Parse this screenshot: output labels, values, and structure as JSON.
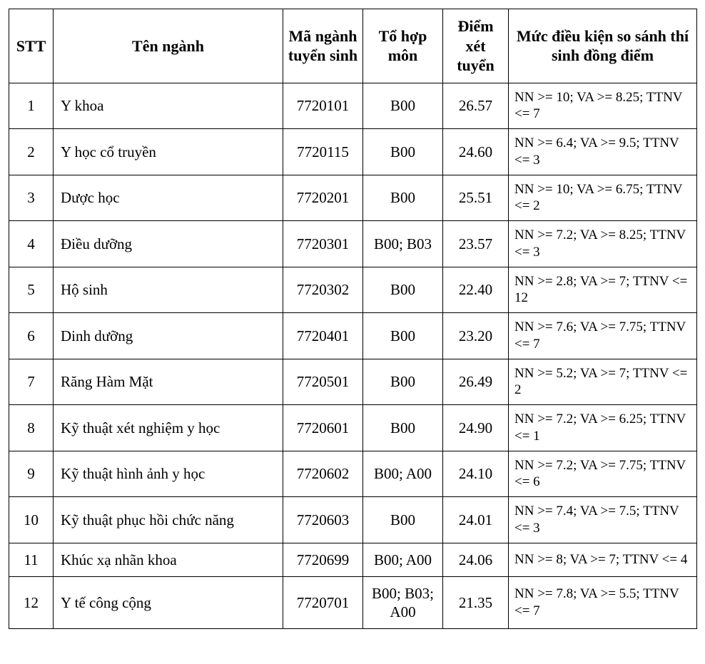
{
  "table": {
    "columns": {
      "stt": "STT",
      "name": "Tên ngành",
      "code": "Mã ngành tuyển sinh",
      "combo": "Tổ hợp môn",
      "score": "Điểm xét tuyển",
      "cond": "Mức điều kiện so sánh thí sinh đồng điểm"
    },
    "rows": [
      {
        "stt": "1",
        "name": "Y khoa",
        "code": "7720101",
        "combo": "B00",
        "score": "26.57",
        "cond": "NN >= 10; VA >= 8.25; TTNV <= 7"
      },
      {
        "stt": "2",
        "name": "Y học cổ truyền",
        "code": "7720115",
        "combo": "B00",
        "score": "24.60",
        "cond": "NN >= 6.4; VA >= 9.5; TTNV <= 3"
      },
      {
        "stt": "3",
        "name": "Dược học",
        "code": "7720201",
        "combo": "B00",
        "score": "25.51",
        "cond": "NN >= 10; VA >= 6.75; TTNV <= 2"
      },
      {
        "stt": "4",
        "name": "Điều dưỡng",
        "code": "7720301",
        "combo": "B00; B03",
        "score": "23.57",
        "cond": "NN >= 7.2; VA >= 8.25; TTNV <= 3"
      },
      {
        "stt": "5",
        "name": "Hộ sinh",
        "code": "7720302",
        "combo": "B00",
        "score": "22.40",
        "cond": "NN >= 2.8; VA >= 7; TTNV <= 12"
      },
      {
        "stt": "6",
        "name": "Dinh dưỡng",
        "code": "7720401",
        "combo": "B00",
        "score": "23.20",
        "cond": "NN >= 7.6; VA >= 7.75; TTNV <= 7"
      },
      {
        "stt": "7",
        "name": "Răng Hàm Mặt",
        "code": "7720501",
        "combo": "B00",
        "score": "26.49",
        "cond": "NN >= 5.2; VA >= 7; TTNV <= 2"
      },
      {
        "stt": "8",
        "name": "Kỹ thuật xét nghiệm y học",
        "code": "7720601",
        "combo": "B00",
        "score": "24.90",
        "cond": "NN >= 7.2; VA >= 6.25; TTNV <= 1"
      },
      {
        "stt": "9",
        "name": "Kỹ thuật hình ảnh y học",
        "code": "7720602",
        "combo": "B00; A00",
        "score": "24.10",
        "cond": "NN >= 7.2; VA >= 7.75; TTNV <= 6"
      },
      {
        "stt": "10",
        "name": "Kỹ thuật phục hồi chức năng",
        "code": "7720603",
        "combo": "B00",
        "score": "24.01",
        "cond": "NN >= 7.4; VA >= 7.5; TTNV <= 3"
      },
      {
        "stt": "11",
        "name": "Khúc xạ nhãn khoa",
        "code": "7720699",
        "combo": "B00; A00",
        "score": "24.06",
        "cond": "NN >= 8; VA >= 7; TTNV <= 4"
      },
      {
        "stt": "12",
        "name": "Y tế công cộng",
        "code": "7720701",
        "combo": "B00; B03; A00",
        "score": "21.35",
        "cond": "NN >= 7.8; VA >= 5.5; TTNV <= 7"
      }
    ]
  }
}
